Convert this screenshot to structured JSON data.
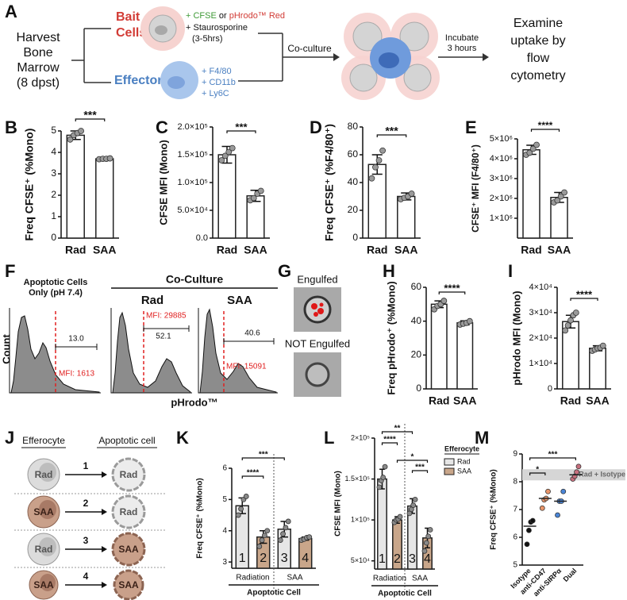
{
  "panel_letters": [
    "A",
    "B",
    "C",
    "D",
    "E",
    "F",
    "G",
    "H",
    "I",
    "J",
    "K",
    "L",
    "M"
  ],
  "workflow": {
    "harvest": [
      "Harvest",
      "Bone",
      "Marrow",
      "(8 dpst)"
    ],
    "bait": {
      "title": [
        "Bait",
        "Cells"
      ],
      "stain_1": "+ CFSE",
      "or": "or",
      "stain_2": "pHrodo™ Red",
      "treatment": "+ Staurosporine",
      "duration": "(3-5hrs)"
    },
    "effectors": {
      "title": "Effectors",
      "markers": [
        "+ F4/80",
        "+ CD11b",
        "+ Ly6C"
      ]
    },
    "co_culture": "Co-culture",
    "incubate": [
      "Incubate",
      "3 hours"
    ],
    "outcome": [
      "Examine",
      "uptake by",
      "flow",
      "cytometry"
    ]
  },
  "flow": {
    "y_label": "Count",
    "x_label": "pHrodo™",
    "group_title": "Co-Culture",
    "panels": [
      {
        "title": [
          "Apoptotic Cells",
          "Only (pH 7.4)"
        ],
        "gate": "13.0",
        "mfi": "MFI: 1613"
      },
      {
        "title": "Rad",
        "gate": "52.1",
        "mfi": "MFI: 29885"
      },
      {
        "title": "SAA",
        "gate": "40.6",
        "mfi": "MFI: 15091"
      }
    ]
  },
  "imaging": {
    "top": "Engulfed",
    "bottom": "NOT Engulfed"
  },
  "groups": {
    "efferocyte": "Efferocyte",
    "apoptotic": "Apoptotic cell",
    "rows": [
      {
        "number": "1",
        "efferocyte": "Rad",
        "apoptotic": "Rad"
      },
      {
        "number": "2",
        "efferocyte": "SAA",
        "apoptotic": "Rad"
      },
      {
        "number": "3",
        "efferocyte": "Rad",
        "apoptotic": "SAA"
      },
      {
        "number": "4",
        "efferocyte": "SAA",
        "apoptotic": "SAA"
      }
    ]
  },
  "chart_data": [
    {
      "type": "bar",
      "y_label": "Freq CFSE⁺ (%Mono)",
      "categories": [
        "Rad",
        "SAA"
      ],
      "values": [
        4.8,
        3.7
      ],
      "errors": [
        0.2,
        0.05
      ],
      "points": [
        [
          4.6,
          4.8,
          4.9,
          5.0
        ],
        [
          3.68,
          3.7,
          3.7,
          3.72
        ]
      ],
      "color": "#ffffff",
      "point_color": "#9a9a9a",
      "ylim": [
        0,
        5
      ],
      "yticks": [
        0,
        1,
        2,
        3,
        4,
        5
      ],
      "significance": [
        "***"
      ]
    },
    {
      "type": "bar",
      "y_label": "CFSE MFI (Mono)",
      "categories": [
        "Rad",
        "SAA"
      ],
      "values": [
        150000,
        76000
      ],
      "errors": [
        15000,
        10000
      ],
      "points": [
        [
          140000,
          148000,
          155000,
          162000
        ],
        [
          68000,
          72000,
          80000,
          85000
        ]
      ],
      "color": "#ffffff",
      "point_color": "#9a9a9a",
      "ylim": [
        0,
        200000
      ],
      "yticks": [
        {
          "value": 0,
          "label": "0.0"
        },
        {
          "value": 50000,
          "label": "5.0×10⁴"
        },
        {
          "value": 100000,
          "label": "1.0×10⁵"
        },
        {
          "value": 150000,
          "label": "1.5×10⁵"
        },
        {
          "value": 200000,
          "label": "2.0×10⁵"
        }
      ],
      "significance": [
        "***"
      ]
    },
    {
      "type": "bar",
      "y_label": "Freq CFSE⁺ (%F4/80⁺)",
      "categories": [
        "Rad",
        "SAA"
      ],
      "values": [
        53,
        30
      ],
      "errors": [
        7,
        2.5
      ],
      "points": [
        [
          43,
          51,
          56,
          63
        ],
        [
          28,
          29,
          30,
          32
        ]
      ],
      "color": "#ffffff",
      "point_color": "#9a9a9a",
      "ylim": [
        0,
        80
      ],
      "yticks": [
        0,
        20,
        40,
        60,
        80
      ],
      "significance": [
        "***"
      ]
    },
    {
      "type": "bar",
      "y_label": "CFSE⁺ MFI (F4/80⁺)",
      "categories": [
        "Rad",
        "SAA"
      ],
      "values": [
        4450000,
        2050000
      ],
      "errors": [
        230000,
        250000
      ],
      "points": [
        [
          4200000,
          4300000,
          4500000,
          4700000
        ],
        [
          1800000,
          1900000,
          2100000,
          2300000
        ]
      ],
      "color": "#ffffff",
      "point_color": "#9a9a9a",
      "ylim": [
        0,
        5000000
      ],
      "yticks": [
        {
          "value": 1000000,
          "label": "1×10⁶"
        },
        {
          "value": 2000000,
          "label": "2×10⁶"
        },
        {
          "value": 3000000,
          "label": "3×10⁶"
        },
        {
          "value": 4000000,
          "label": "4×10⁶"
        },
        {
          "value": 5000000,
          "label": "5×10⁶"
        }
      ],
      "significance": [
        "****"
      ]
    },
    {
      "type": "bar",
      "y_label": "Freq pHrodo⁺ (%Mono)",
      "categories": [
        "Rad",
        "SAA"
      ],
      "values": [
        50,
        39
      ],
      "errors": [
        2,
        1.2
      ],
      "points": [
        [
          47,
          49,
          50,
          52
        ],
        [
          38,
          38.5,
          39,
          40
        ]
      ],
      "color": "#ffffff",
      "point_color": "#9a9a9a",
      "ylim": [
        0,
        60
      ],
      "yticks": [
        0,
        20,
        40,
        60
      ],
      "significance": [
        "****"
      ]
    },
    {
      "type": "bar",
      "y_label": "pHrodo MFI (Mono)",
      "categories": [
        "Rad",
        "SAA"
      ],
      "values": [
        26500,
        16000
      ],
      "errors": [
        2500,
        1000
      ],
      "points": [
        [
          23000,
          25000,
          27000,
          29000,
          30000
        ],
        [
          15000,
          15500,
          16000,
          16200,
          17000
        ]
      ],
      "color": "#ffffff",
      "point_color": "#9a9a9a",
      "ylim": [
        0,
        40000
      ],
      "yticks": [
        0,
        {
          "value": 10000,
          "label": "1×10⁴"
        },
        {
          "value": 20000,
          "label": "2×10⁴"
        },
        {
          "value": 30000,
          "label": "3×10⁴"
        },
        {
          "value": 40000,
          "label": "4×10⁴"
        }
      ],
      "significance": [
        "****"
      ]
    },
    {
      "type": "bar",
      "y_label": "Freq CFSE⁺ (%Mono)",
      "x_label": "Apoptotic Cell",
      "categories": [
        "1",
        "2",
        "3",
        "4"
      ],
      "groups": [
        "Radiation",
        "SAA"
      ],
      "values": [
        4.8,
        3.8,
        4.05,
        3.75
      ],
      "errors": [
        0.25,
        0.2,
        0.25,
        0.05
      ],
      "points": [
        [
          4.5,
          4.7,
          5.0,
          5.1
        ],
        [
          3.5,
          3.7,
          3.85,
          4.0
        ],
        [
          3.7,
          3.9,
          4.1,
          4.3
        ],
        [
          3.7,
          3.73,
          3.78,
          3.8
        ]
      ],
      "colors": [
        "#e6e6e6",
        "#c9a68a",
        "#e6e6e6",
        "#c9a68a"
      ],
      "point_color": "#8a8a8a",
      "ylim": [
        2.8,
        6
      ],
      "yticks": [
        3,
        4,
        5,
        6
      ],
      "significance": [
        "****",
        "***"
      ]
    },
    {
      "type": "bar",
      "y_label": "CFSE MFI (Mono)",
      "x_label": "Apoptotic Cell",
      "categories": [
        "1",
        "2",
        "3",
        "4"
      ],
      "groups": [
        "Radiation",
        "SAA"
      ],
      "values": [
        150000,
        100000,
        117000,
        78000
      ],
      "errors": [
        12000,
        4000,
        9000,
        12000
      ],
      "points": [
        [
          140000,
          148000,
          152000,
          165000
        ],
        [
          97000,
          100000,
          101000,
          104000
        ],
        [
          108000,
          113000,
          118000,
          125000
        ],
        [
          62000,
          72000,
          80000,
          88000
        ]
      ],
      "colors": [
        "#e6e6e6",
        "#c9a68a",
        "#e6e6e6",
        "#c9a68a"
      ],
      "point_color": "#8a8a8a",
      "ylim": [
        40000,
        200000
      ],
      "yticks": [
        {
          "value": 50000,
          "label": "5×10⁴"
        },
        {
          "value": 100000,
          "label": "1×10⁵"
        },
        {
          "value": 150000,
          "label": "1.5×10⁵"
        },
        {
          "value": 200000,
          "label": "2×10⁵"
        }
      ],
      "legend": {
        "title": "Efferocyte",
        "entries": [
          {
            "name": "Rad",
            "color": "#e6e6e6"
          },
          {
            "name": "SAA",
            "color": "#c9a68a"
          }
        ]
      },
      "significance": [
        "****",
        "**",
        "*",
        "***"
      ]
    },
    {
      "type": "dot",
      "y_label": "Freq CFSE⁺ (%Mono)",
      "categories": [
        "Isotype",
        "anti-CD47",
        "anti-SIRPα",
        "Dual"
      ],
      "values": [
        6.4,
        7.4,
        7.3,
        8.25
      ],
      "points": [
        [
          5.75,
          6.25,
          6.55,
          6.6
        ],
        [
          7.05,
          7.35,
          7.4,
          7.65
        ],
        [
          6.8,
          7.3,
          7.3,
          7.65
        ],
        [
          8.1,
          8.2,
          8.35,
          8.55
        ]
      ],
      "colors": [
        "#111111",
        "#e9956a",
        "#4a86d8",
        "#c8707e"
      ],
      "reference": {
        "label": "Rad + Isotype",
        "range": [
          8.05,
          8.45
        ]
      },
      "ylim": [
        5,
        9
      ],
      "yticks": [
        5,
        6,
        7,
        8,
        9
      ],
      "significance": [
        "*",
        "***"
      ]
    }
  ]
}
